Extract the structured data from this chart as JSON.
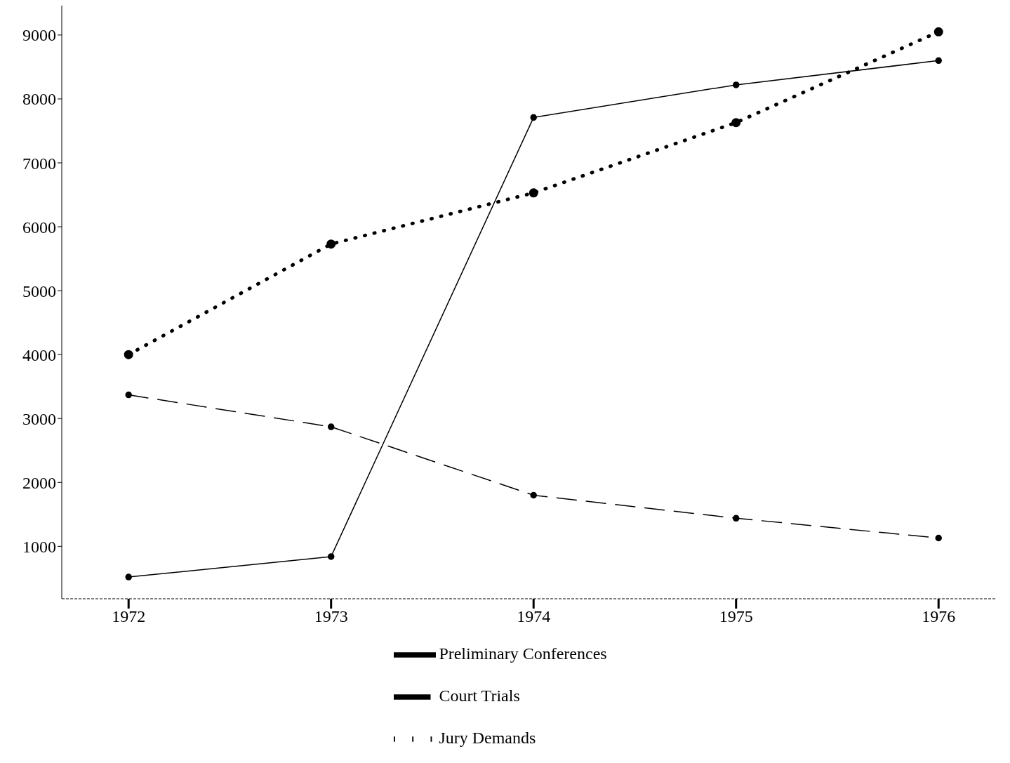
{
  "chart_data": {
    "type": "line",
    "x": [
      1972,
      1973,
      1974,
      1975,
      1976
    ],
    "xlim": [
      1971.67,
      1976.28
    ],
    "xticks": [
      1972,
      1973,
      1974,
      1975,
      1976
    ],
    "ylim": [
      180,
      9460
    ],
    "yticks": [
      1000,
      2000,
      3000,
      4000,
      5000,
      6000,
      7000,
      8000,
      9000
    ],
    "grid": false,
    "legend": "bottom",
    "marker": "circle",
    "series": [
      {
        "name": "Preliminary Conferences",
        "color": "#000000",
        "line_style": "solid",
        "values": [
          520,
          840,
          7710,
          8220,
          8600
        ]
      },
      {
        "name": "Court Trials",
        "color": "#000000",
        "line_style": "dashed",
        "values": [
          3370,
          2870,
          1800,
          1440,
          1130
        ]
      },
      {
        "name": "Jury Demands",
        "color": "#000000",
        "line_style": "dotted",
        "values": [
          4000,
          5730,
          6530,
          7630,
          9050
        ]
      }
    ]
  }
}
